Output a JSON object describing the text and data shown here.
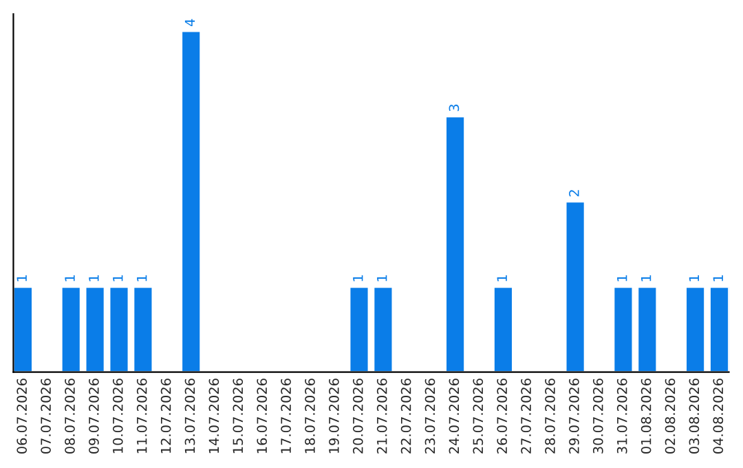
{
  "chart_data": {
    "type": "bar",
    "categories": [
      "06.07.2026",
      "07.07.2026",
      "08.07.2026",
      "09.07.2026",
      "10.07.2026",
      "11.07.2026",
      "12.07.2026",
      "13.07.2026",
      "14.07.2026",
      "15.07.2026",
      "16.07.2026",
      "17.07.2026",
      "18.07.2026",
      "19.07.2026",
      "20.07.2026",
      "21.07.2026",
      "22.07.2026",
      "23.07.2026",
      "24.07.2026",
      "25.07.2026",
      "26.07.2026",
      "27.07.2026",
      "28.07.2026",
      "29.07.2026",
      "30.07.2026",
      "31.07.2026",
      "01.08.2026",
      "02.08.2026",
      "03.08.2026",
      "04.08.2026"
    ],
    "values": [
      1,
      null,
      1,
      1,
      1,
      1,
      null,
      4,
      null,
      null,
      null,
      null,
      null,
      null,
      1,
      1,
      null,
      null,
      3,
      null,
      1,
      null,
      null,
      2,
      null,
      1,
      1,
      null,
      1,
      1
    ],
    "color": "#0a7de8",
    "data_labels": true,
    "grid": false,
    "legend": false,
    "tick_labels": "x"
  }
}
